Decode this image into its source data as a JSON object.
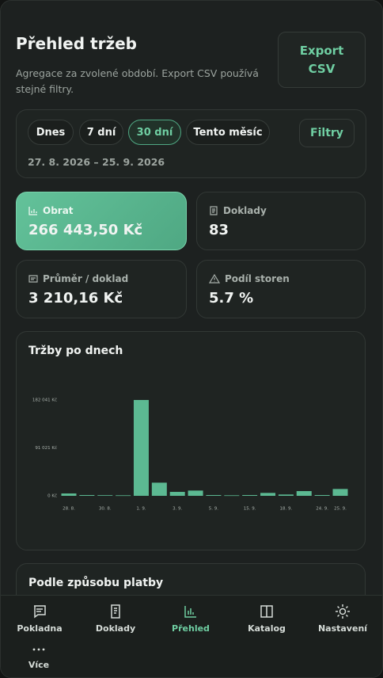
{
  "header": {
    "title": "Přehled tržeb",
    "subtitle": "Agregace za zvolené období. Export CSV používá stejné filtry.",
    "export_button": "Export CSV"
  },
  "filters": {
    "chips": [
      "Dnes",
      "7 dní",
      "30 dní",
      "Tento měsíc"
    ],
    "button": "Filtry",
    "range": "27. 8. 2026 – 25. 9. 2026"
  },
  "kpis": [
    {
      "label": "Obrat",
      "value": "266 443,50 Kč"
    },
    {
      "label": "Doklady",
      "value": "83"
    },
    {
      "label": "Průměr / doklad",
      "value": "3 210,16 Kč"
    },
    {
      "label": "Podíl storen",
      "value": "5.7 %"
    }
  ],
  "chart_data": {
    "type": "bar",
    "title": "Tržby po dnech",
    "categories": [
      "28. 8.",
      null,
      "30. 8.",
      null,
      "1. 9.",
      null,
      "3. 9.",
      null,
      "5. 9.",
      null,
      "15. 9.",
      null,
      "18. 9.",
      null,
      "24. 9.",
      "25. 9."
    ],
    "values": [
      4500,
      1500,
      1200,
      1000,
      182041,
      25000,
      7500,
      10000,
      1500,
      1000,
      1500,
      5500,
      2500,
      9000,
      1500,
      13000
    ],
    "color": "#5cb992",
    "ylim": [
      0,
      182041
    ],
    "yticks": [
      {
        "value": 0,
        "label": "0 Kč"
      },
      {
        "value": 91021,
        "label": "91 021 Kč"
      },
      {
        "value": 182041,
        "label": "182 041 Kč"
      }
    ]
  },
  "section_title": "Podle způsobu platby",
  "nav": [
    "Pokladna",
    "Doklady",
    "Přehled",
    "Katalog",
    "Nastavení",
    "Více"
  ]
}
